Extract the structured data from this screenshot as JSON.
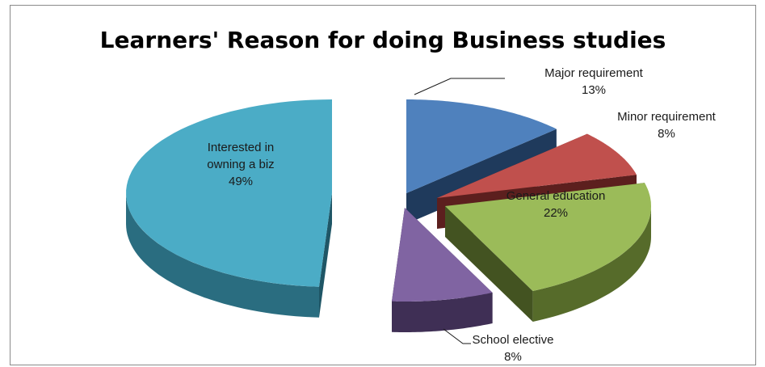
{
  "chart_data": {
    "type": "pie",
    "title": "Learners' Reason for doing Business studies",
    "style": "3D exploded pie",
    "slices": [
      {
        "label": "Major requirement",
        "value": 13,
        "display": "13%",
        "color": "#4f81bd",
        "side_color": "#2b4f7c",
        "wall_color": "#1f3a5c"
      },
      {
        "label": "Minor requirement",
        "value": 8,
        "display": "8%",
        "color": "#c0504d",
        "side_color": "#7a2b29",
        "wall_color": "#5c1f1e"
      },
      {
        "label": "General education",
        "value": 22,
        "display": "22%",
        "color": "#9bbb59",
        "side_color": "#566b2a",
        "wall_color": "#435321"
      },
      {
        "label": "School elective",
        "value": 8,
        "display": "8%",
        "color": "#8064a2",
        "side_color": "#3f2f55",
        "wall_color": "#2e2240"
      },
      {
        "label": "Interested in owning a biz",
        "label_lines": [
          "Interested in",
          "owning a biz"
        ],
        "value": 49,
        "display": "49%",
        "color": "#4bacc6",
        "side_color": "#2a6d80",
        "wall_color": "#1f5666"
      }
    ],
    "legend": "none"
  }
}
